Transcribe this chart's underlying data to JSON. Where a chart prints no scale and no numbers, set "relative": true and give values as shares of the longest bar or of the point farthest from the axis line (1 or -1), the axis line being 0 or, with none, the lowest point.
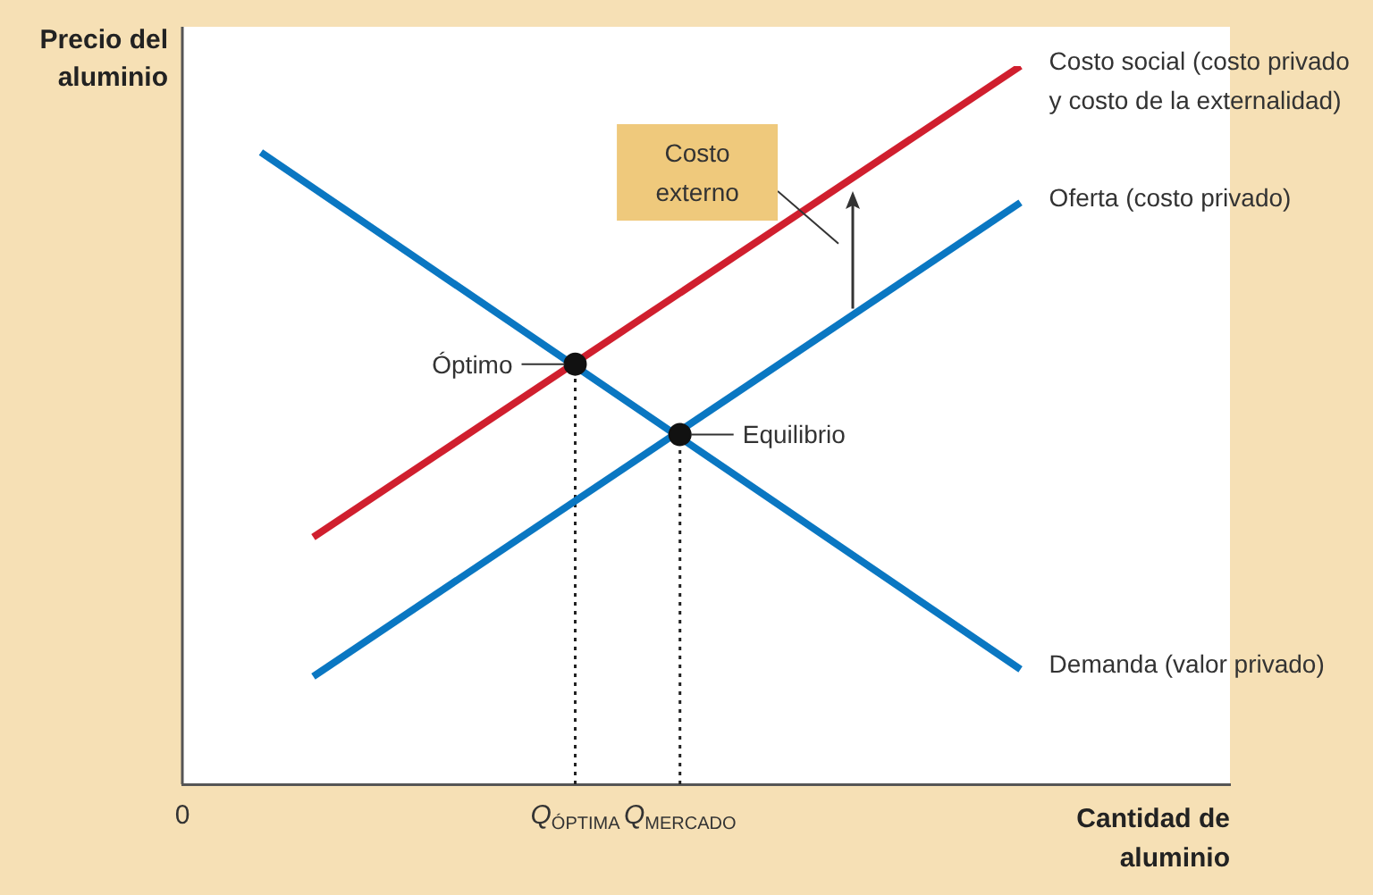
{
  "chart_data": {
    "type": "line",
    "relative": true,
    "xlabel": "Cantidad de aluminio",
    "ylabel": "Precio del aluminio",
    "tick_labels": "x",
    "categories": [
      "0",
      null,
      null,
      null,
      null,
      null,
      null,
      null,
      null,
      null,
      null,
      null,
      null,
      null,
      null,
      "Q$_{ÓPTIMA}$",
      null,
      null,
      null,
      "Q$_{MERCADO}$",
      null,
      null,
      null,
      null,
      null,
      null,
      null,
      null,
      null,
      null,
      null,
      null,
      null,
      null,
      null,
      null,
      null,
      null,
      null,
      null,
      null
    ],
    "series": [
      {
        "name": "Costo social (costo privado y costo de la externalidad)",
        "color": "#d01f2e",
        "values": [
          null,
          null,
          null,
          null,
          null,
          0.344,
          null,
          null,
          null,
          null,
          null,
          null,
          null,
          null,
          null,
          null,
          null,
          null,
          null,
          null,
          null,
          null,
          null,
          null,
          null,
          null,
          null,
          null,
          null,
          null,
          null,
          null,
          1,
          null,
          null,
          null,
          null,
          null,
          null,
          null,
          null
        ]
      },
      {
        "name": "Oferta (costo privado)",
        "color": "#0a77c2",
        "values": [
          null,
          null,
          null,
          null,
          null,
          0.15,
          null,
          null,
          null,
          null,
          null,
          null,
          null,
          null,
          null,
          null,
          null,
          null,
          null,
          null,
          null,
          null,
          null,
          null,
          null,
          null,
          null,
          null,
          null,
          null,
          null,
          null,
          0.81,
          null,
          null,
          null,
          null,
          null,
          null,
          null,
          null
        ]
      },
      {
        "name": "Demanda (valor privado)",
        "color": "#0a77c2",
        "values": [
          null,
          null,
          null,
          0.88,
          null,
          null,
          null,
          null,
          null,
          null,
          null,
          null,
          null,
          null,
          null,
          null,
          null,
          null,
          null,
          null,
          null,
          null,
          null,
          null,
          null,
          null,
          null,
          null,
          null,
          null,
          null,
          null,
          0.16,
          null,
          null,
          null,
          null,
          null,
          null,
          null,
          null
        ]
      },
      {
        "color": "#222222",
        "x": [
          "Q$_{ÓPTIMA}$",
          "Q$_{ÓPTIMA}$"
        ],
        "values": [
          0,
          0.585
        ],
        "line_style": "dotted",
        "marker": "none"
      },
      {
        "color": "#222222",
        "x": [
          "Q$_{MERCADO}$",
          "Q$_{MERCADO}$"
        ],
        "values": [
          0,
          0.487
        ],
        "line_style": "dotted",
        "marker": "none"
      },
      {
        "type": "scatter",
        "color": "#111111",
        "x": [
          "Q$_{ÓPTIMA}$",
          "Q$_{MERCADO}$"
        ],
        "values": [
          0.585,
          0.487
        ],
        "marker": "circle"
      }
    ],
    "annotations": [
      {
        "text": "Óptimo",
        "x": "Q$_{ÓPTIMA}$",
        "y": 0.585
      },
      {
        "text": "Equilibrio",
        "x": "Q$_{MERCADO}$",
        "y": 0.487
      },
      "Costo externo"
    ]
  }
}
